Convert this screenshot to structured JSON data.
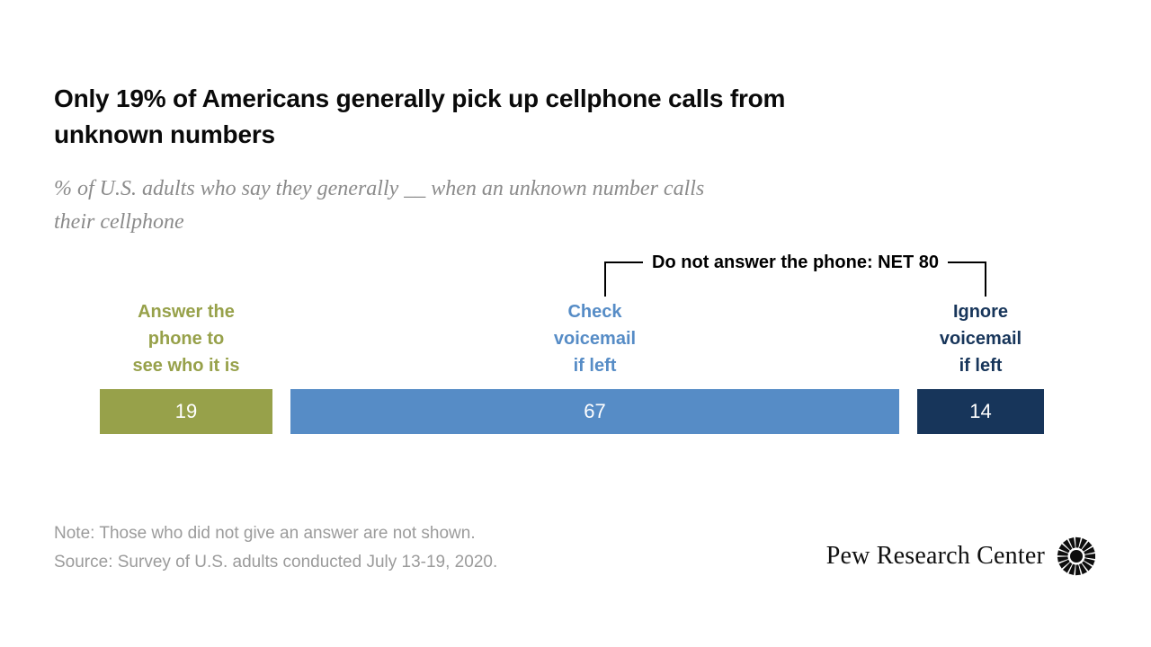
{
  "header": {
    "title": "Only 19% of Americans generally pick up cellphone calls from unknown numbers",
    "title_lines": [
      "Only 19% of Americans generally pick up cellphone calls from",
      "unknown numbers"
    ],
    "subtitle": "% of U.S. adults who say they generally __ when an unknown number calls their cellphone",
    "subtitle_lines": [
      "% of U.S. adults who say they generally __ when an unknown number calls",
      "their cellphone"
    ]
  },
  "annotation": {
    "net_label": "Do not answer the phone: NET 80",
    "net_value": 80,
    "net_covers": [
      "Check voicemail if left",
      "Ignore voicemail if left"
    ]
  },
  "chart_data": {
    "type": "bar",
    "orientation": "horizontal-stacked",
    "title": "Only 19% of Americans generally pick up cellphone calls from unknown numbers",
    "subtitle": "% of U.S. adults who say they generally __ when an unknown number calls their cellphone",
    "categories": [
      "Answer the phone to see who it is",
      "Check voicemail if left",
      "Ignore voicemail if left"
    ],
    "label_lines": [
      [
        "Answer the",
        "phone to",
        "see who it is"
      ],
      [
        "Check",
        "voicemail",
        "if left"
      ],
      [
        "Ignore",
        "voicemail",
        "if left"
      ]
    ],
    "values": [
      19,
      67,
      14
    ],
    "unit": "% of U.S. adults",
    "colors": [
      "#97a14a",
      "#568cc6",
      "#17355a"
    ],
    "value_label_color": "#ffffff",
    "net_annotation": "Do not answer the phone: NET 80"
  },
  "footer": {
    "note": "Note: Those who did not give an answer are not shown.",
    "source": "Source: Survey of U.S. adults conducted July 13-19, 2020.",
    "brand": "Pew Research Center"
  },
  "icons": {
    "brand_mark": "pew-sunburst-icon"
  }
}
